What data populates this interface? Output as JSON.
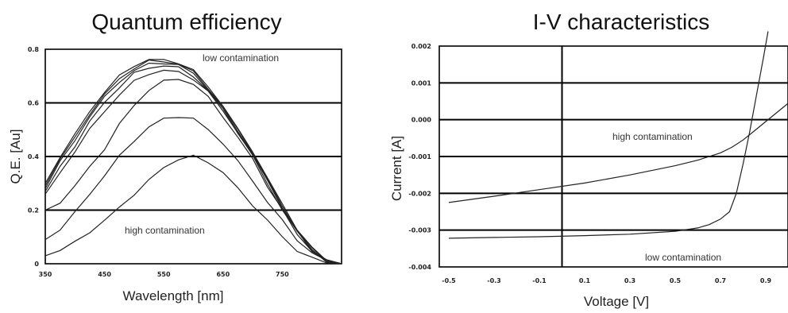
{
  "chart_data": [
    {
      "type": "line",
      "title": "Quantum efficiency",
      "xlabel": "Wavelength [nm]",
      "ylabel": "Q.E. [Au]",
      "xlim": [
        350,
        850
      ],
      "ylim": [
        0,
        0.8
      ],
      "x_ticks": [
        "350",
        "450",
        "550",
        "650",
        "750"
      ],
      "y_ticks": [
        "0.8",
        "0.6",
        "0.4",
        "0.2",
        "0"
      ],
      "y_tick_values": [
        0.8,
        0.6,
        0.4,
        0.2,
        0
      ],
      "grid_values": [
        0.6,
        0.4,
        0.2
      ],
      "annotations": {
        "top": "low contamination",
        "bottom": "high contamination"
      },
      "series": [
        {
          "x": [
            350,
            375,
            400,
            425,
            450,
            475,
            500,
            525,
            550,
            575,
            600,
            625,
            650,
            675,
            700,
            725,
            750,
            775,
            800,
            825,
            850
          ],
          "y": [
            0.3,
            0.4,
            0.48,
            0.57,
            0.64,
            0.7,
            0.74,
            0.76,
            0.76,
            0.75,
            0.72,
            0.66,
            0.59,
            0.5,
            0.42,
            0.32,
            0.22,
            0.13,
            0.06,
            0.01,
            0.0
          ]
        },
        {
          "x": [
            350,
            375,
            400,
            425,
            450,
            475,
            500,
            525,
            550,
            575,
            600,
            625,
            650,
            675,
            700,
            725,
            750,
            775,
            800,
            825,
            850
          ],
          "y": [
            0.29,
            0.39,
            0.47,
            0.56,
            0.63,
            0.69,
            0.73,
            0.755,
            0.755,
            0.745,
            0.715,
            0.655,
            0.585,
            0.5,
            0.415,
            0.315,
            0.215,
            0.125,
            0.055,
            0.01,
            0.0
          ]
        },
        {
          "x": [
            350,
            375,
            400,
            425,
            450,
            475,
            500,
            525,
            550,
            575,
            600,
            625,
            650,
            675,
            700,
            725,
            750,
            775,
            800,
            825,
            850
          ],
          "y": [
            0.28,
            0.38,
            0.46,
            0.55,
            0.62,
            0.68,
            0.72,
            0.745,
            0.75,
            0.74,
            0.71,
            0.65,
            0.58,
            0.495,
            0.41,
            0.31,
            0.21,
            0.12,
            0.05,
            0.01,
            0.0
          ]
        },
        {
          "x": [
            350,
            375,
            400,
            425,
            450,
            475,
            500,
            525,
            550,
            575,
            600,
            625,
            650,
            675,
            700,
            725,
            750,
            775,
            800,
            825,
            850
          ],
          "y": [
            0.27,
            0.36,
            0.44,
            0.53,
            0.6,
            0.66,
            0.71,
            0.73,
            0.74,
            0.73,
            0.7,
            0.645,
            0.575,
            0.49,
            0.405,
            0.31,
            0.21,
            0.12,
            0.05,
            0.01,
            0.0
          ]
        },
        {
          "x": [
            350,
            375,
            400,
            425,
            450,
            475,
            500,
            525,
            550,
            575,
            600,
            625,
            650,
            675,
            700,
            725,
            750,
            775,
            800,
            825,
            850
          ],
          "y": [
            0.26,
            0.34,
            0.42,
            0.5,
            0.57,
            0.63,
            0.68,
            0.71,
            0.72,
            0.715,
            0.69,
            0.64,
            0.57,
            0.49,
            0.4,
            0.3,
            0.2,
            0.12,
            0.05,
            0.01,
            0.0
          ]
        },
        {
          "x": [
            350,
            375,
            400,
            425,
            450,
            475,
            500,
            525,
            550,
            575,
            600,
            625,
            650,
            675,
            700,
            725,
            750,
            775,
            800,
            825,
            850
          ],
          "y": [
            0.2,
            0.23,
            0.29,
            0.36,
            0.43,
            0.52,
            0.59,
            0.65,
            0.68,
            0.69,
            0.67,
            0.62,
            0.55,
            0.47,
            0.39,
            0.29,
            0.2,
            0.11,
            0.05,
            0.01,
            0.0
          ]
        },
        {
          "x": [
            350,
            375,
            400,
            425,
            450,
            475,
            500,
            525,
            550,
            575,
            600,
            625,
            650,
            675,
            700,
            725,
            750,
            775,
            800,
            825,
            850
          ],
          "y": [
            0.09,
            0.13,
            0.19,
            0.26,
            0.33,
            0.4,
            0.46,
            0.51,
            0.54,
            0.55,
            0.54,
            0.5,
            0.45,
            0.38,
            0.31,
            0.23,
            0.16,
            0.09,
            0.04,
            0.01,
            0.0
          ]
        },
        {
          "x": [
            350,
            375,
            400,
            425,
            450,
            475,
            500,
            525,
            550,
            575,
            600,
            625,
            650,
            675,
            700,
            725,
            750,
            775,
            800,
            825,
            850
          ],
          "y": [
            0.03,
            0.05,
            0.08,
            0.12,
            0.16,
            0.21,
            0.26,
            0.31,
            0.36,
            0.39,
            0.4,
            0.38,
            0.34,
            0.28,
            0.22,
            0.16,
            0.1,
            0.05,
            0.02,
            0.005,
            0.0
          ]
        }
      ]
    },
    {
      "type": "line",
      "title": "I-V characteristics",
      "xlabel": "Voltage  [V]",
      "ylabel": "Current [A]",
      "xlim": [
        -0.5,
        1.0
      ],
      "ylim": [
        -0.004,
        0.002
      ],
      "x_ticks": [
        "-0.5",
        "-0.3",
        "-0.1",
        "0.1",
        "0.3",
        "0.5",
        "0.7",
        "0.9"
      ],
      "x_tick_values": [
        -0.5,
        -0.3,
        -0.1,
        0.1,
        0.3,
        0.5,
        0.7,
        0.9
      ],
      "y_ticks": [
        "0.002",
        "0.001",
        "0.000",
        "-0.001",
        "-0.002",
        "-0.003",
        "-0.004"
      ],
      "y_tick_values": [
        0.002,
        0.001,
        0.0,
        -0.001,
        -0.002,
        -0.003,
        -0.004
      ],
      "grid_values": [
        0.001,
        0.0,
        -0.001,
        -0.002,
        -0.003
      ],
      "vline": 0.0,
      "annotations": {
        "upper": "high contamination",
        "lower": "low contamination"
      },
      "series": [
        {
          "x": [
            -0.5,
            -0.3,
            -0.1,
            0.1,
            0.3,
            0.5,
            0.6,
            0.7,
            0.75,
            0.8,
            0.85,
            0.9,
            0.95,
            1.0
          ],
          "y": [
            -0.00225,
            -0.00208,
            -0.0019,
            -0.00172,
            -0.0015,
            -0.00125,
            -0.0011,
            -0.0009,
            -0.00075,
            -0.00055,
            -0.0003,
            -5e-05,
            0.0002,
            0.00045
          ]
        },
        {
          "x": [
            -0.5,
            -0.3,
            -0.1,
            0.1,
            0.3,
            0.5,
            0.6,
            0.65,
            0.7,
            0.74,
            0.77,
            0.8,
            0.83,
            0.86,
            0.89,
            0.91
          ],
          "y": [
            -0.00322,
            -0.0032,
            -0.00318,
            -0.00315,
            -0.00311,
            -0.00303,
            -0.00294,
            -0.00285,
            -0.0027,
            -0.0025,
            -0.002,
            -0.0012,
            -0.0003,
            0.0007,
            0.0017,
            0.0024
          ]
        }
      ]
    }
  ]
}
